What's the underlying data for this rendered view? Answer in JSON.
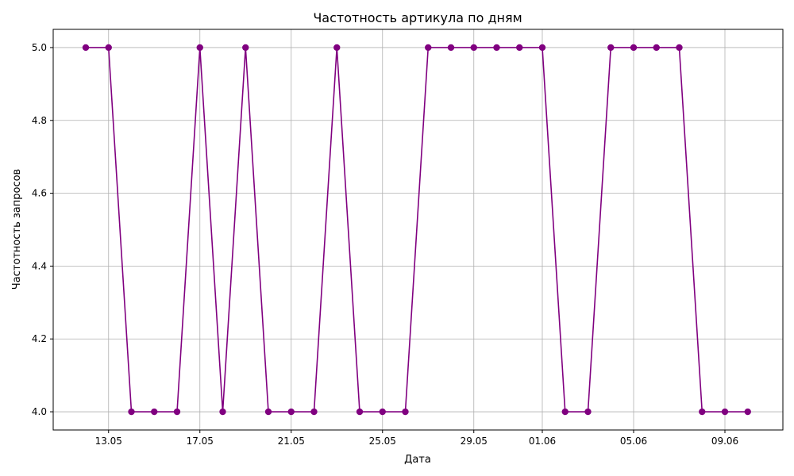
{
  "chart_data": {
    "type": "line",
    "title": "Частотность артикула по дням",
    "xlabel": "Дата",
    "ylabel": "Частотность запросов",
    "x_tick_labels": [
      "13.05",
      "17.05",
      "21.05",
      "25.05",
      "29.05",
      "01.06",
      "05.06",
      "09.06"
    ],
    "y_tick_labels": [
      "4.0",
      "4.2",
      "4.4",
      "4.6",
      "4.8",
      "5.0"
    ],
    "y_ticks": [
      4.0,
      4.2,
      4.4,
      4.6,
      4.8,
      5.0
    ],
    "ylim": [
      3.95,
      5.05
    ],
    "grid": true,
    "line_color": "#800080",
    "series": [
      {
        "x": [
          "12.05",
          "13.05",
          "14.05",
          "15.05",
          "16.05",
          "17.05",
          "18.05",
          "19.05",
          "20.05",
          "21.05",
          "22.05",
          "23.05",
          "24.05",
          "25.05",
          "26.05",
          "27.05",
          "28.05",
          "29.05",
          "30.05",
          "31.05",
          "01.06",
          "02.06",
          "03.06",
          "04.06",
          "05.06",
          "06.06",
          "07.06",
          "08.06",
          "09.06",
          "10.06"
        ],
        "values": [
          5,
          5,
          4,
          4,
          4,
          5,
          4,
          5,
          4,
          4,
          4,
          5,
          4,
          4,
          4,
          5,
          5,
          5,
          5,
          5,
          5,
          4,
          4,
          5,
          5,
          5,
          5,
          4,
          4,
          4
        ]
      }
    ]
  }
}
